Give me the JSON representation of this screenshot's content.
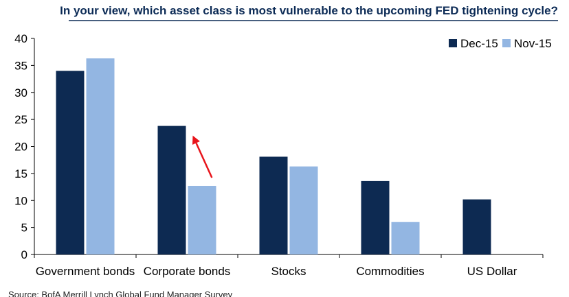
{
  "chart_data": {
    "type": "bar",
    "title": "In your view, which asset class is most vulnerable to the upcoming FED tightening cycle?",
    "source": "Source: BofA Merrill Lynch Global Fund Manager Survey",
    "categories": [
      "Government bonds",
      "Corporate bonds",
      "Stocks",
      "Commodities",
      "US Dollar"
    ],
    "series": [
      {
        "name": "Dec-15",
        "color": "#0d2a52",
        "values": [
          34,
          23.8,
          18.1,
          13.6,
          10.2
        ]
      },
      {
        "name": "Nov-15",
        "color": "#93b6e2",
        "values": [
          36.3,
          12.7,
          16.3,
          6,
          null
        ]
      }
    ],
    "ylim": [
      0,
      40
    ],
    "yticks": [
      0,
      5,
      10,
      15,
      20,
      25,
      30,
      35,
      40
    ],
    "xlabel": "",
    "ylabel": "",
    "legend_position": "top-right",
    "grid": false,
    "annotation": {
      "type": "arrow",
      "color": "#e8141b",
      "category": "Corporate bonds",
      "from_series": "Nov-15",
      "to_series": "Dec-15"
    },
    "title_color": "#0b2a55",
    "title_underline_color": "#0b2a55"
  }
}
